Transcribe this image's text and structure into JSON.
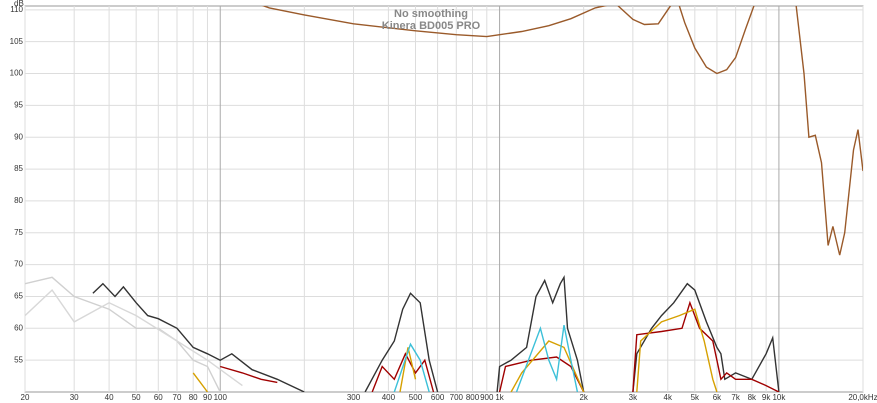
{
  "chart_data": {
    "type": "line",
    "title": "No smoothing",
    "subtitle": "Kinera BD005 PRO",
    "ylabel": "dB",
    "xscale": "log",
    "grid": true,
    "xlim": [
      20,
      20000
    ],
    "ylim": [
      50,
      110.6
    ],
    "yticks": [
      55,
      60,
      65,
      70,
      75,
      80,
      85,
      90,
      95,
      100,
      105,
      110
    ],
    "xticks": [
      20,
      30,
      40,
      50,
      60,
      70,
      80,
      90,
      100,
      {
        "value": 200,
        "label": null
      },
      300,
      400,
      500,
      600,
      700,
      800,
      900,
      {
        "value": 1000,
        "label": "1k"
      },
      {
        "value": 2000,
        "label": "2k"
      },
      {
        "value": 3000,
        "label": "3k"
      },
      {
        "value": 4000,
        "label": "4k"
      },
      {
        "value": 5000,
        "label": "5k"
      },
      {
        "value": 6000,
        "label": "6k"
      },
      {
        "value": 7000,
        "label": "7k"
      },
      {
        "value": 8000,
        "label": "8k"
      },
      {
        "value": 9000,
        "label": "9k"
      },
      {
        "value": 10000,
        "label": "10k"
      },
      {
        "value": 20000,
        "label": "20,0kHz"
      }
    ],
    "series": [
      {
        "color": "#d0d0d0",
        "x": [
          20,
          25,
          30,
          40,
          50,
          60,
          70,
          80,
          90,
          100
        ],
        "values": [
          67,
          68,
          65,
          63,
          60,
          60,
          58,
          55,
          54,
          50
        ]
      },
      {
        "color": "#d8d8d8",
        "x": [
          20,
          25,
          30,
          40,
          50,
          70,
          90,
          120
        ],
        "values": [
          62,
          66,
          61,
          64,
          62,
          58,
          55,
          51
        ]
      },
      {
        "color": "#9a5a2a",
        "x": [
          20,
          100,
          150,
          200,
          300,
          500,
          700,
          900,
          1000,
          1200,
          1500,
          1800,
          2200,
          2600,
          3000,
          3300,
          3700,
          4000,
          4300,
          4600,
          5000,
          5500,
          6000,
          6500,
          7000,
          7600,
          8200,
          10000,
          11500,
          12300,
          12800,
          13500,
          14200,
          15000,
          15600,
          16000,
          16500,
          17200,
          18500,
          19200,
          20000
        ],
        "values": [
          115,
          113,
          110.3,
          109.2,
          107.8,
          106.7,
          106.1,
          105.8,
          106.1,
          106.6,
          107.5,
          108.6,
          110.3,
          111,
          108.5,
          107.7,
          107.8,
          110,
          112,
          108,
          104,
          101,
          100,
          100.6,
          102.5,
          107,
          111,
          113,
          111,
          100,
          90,
          90.3,
          86,
          73,
          76,
          74,
          71.5,
          75,
          88,
          91.2,
          84.7
        ]
      },
      {
        "color": "#333333",
        "x": [
          35,
          38,
          42,
          45,
          50,
          55,
          60,
          70,
          80,
          90,
          100,
          110,
          130,
          160,
          200,
          250,
          330,
          380,
          420,
          450,
          480,
          520,
          560,
          600,
          800,
          980,
          1000,
          1100,
          1250,
          1350,
          1450,
          1550,
          1650,
          1700,
          1750,
          1900,
          2000,
          2500,
          3000,
          3100,
          3500,
          3800,
          4200,
          4700,
          5000,
          5500,
          6000,
          6200,
          6400,
          7000,
          8000,
          9000,
          9500,
          10000
        ],
        "values": [
          65.5,
          67,
          65,
          66.5,
          64,
          62,
          61.5,
          60,
          57,
          56,
          55,
          56,
          53.5,
          52,
          50,
          null,
          50,
          55,
          58,
          63,
          65.5,
          64,
          55,
          50,
          null,
          50,
          54,
          55,
          57,
          65,
          67.5,
          64,
          67,
          68,
          60,
          55,
          50,
          null,
          50,
          56,
          60,
          62,
          64,
          67,
          66,
          61,
          57,
          56,
          52,
          53,
          52,
          56,
          58.5,
          50
        ]
      },
      {
        "color": "#a00000",
        "x": [
          100,
          120,
          140,
          160,
          200,
          350,
          380,
          420,
          460,
          500,
          540,
          580,
          800,
          1000,
          1050,
          1300,
          1600,
          1800,
          2000,
          2500,
          3000,
          3100,
          3800,
          4500,
          4800,
          5200,
          5800,
          6000,
          6200,
          6500,
          7000,
          8000,
          9000,
          10000
        ],
        "values": [
          54,
          53,
          52,
          51.5,
          null,
          50,
          54,
          52,
          56,
          53,
          55,
          50,
          null,
          50,
          54,
          55,
          55.5,
          54,
          50,
          null,
          50,
          59,
          59.5,
          60,
          64,
          60,
          58,
          55,
          52,
          53,
          52,
          52,
          51,
          50
        ]
      },
      {
        "color": "#d6a000",
        "x": [
          80,
          90,
          200,
          440,
          470,
          500,
          800,
          1100,
          1200,
          1500,
          1700,
          2000,
          2500,
          3100,
          3200,
          3800,
          4400,
          5000,
          5400,
          5800,
          6000
        ],
        "values": [
          53,
          50,
          null,
          50,
          57,
          52,
          null,
          50,
          53,
          58,
          57,
          50,
          null,
          50,
          58,
          61,
          62,
          63,
          58,
          52,
          50
        ]
      },
      {
        "color": "#3cc0d8",
        "x": [
          420,
          480,
          520,
          560,
          800,
          1150,
          1400,
          1500,
          1600,
          1700,
          1800,
          1900
        ],
        "values": [
          50,
          57.5,
          55,
          50,
          null,
          50,
          60,
          55,
          52,
          60.5,
          55,
          50
        ]
      }
    ]
  }
}
